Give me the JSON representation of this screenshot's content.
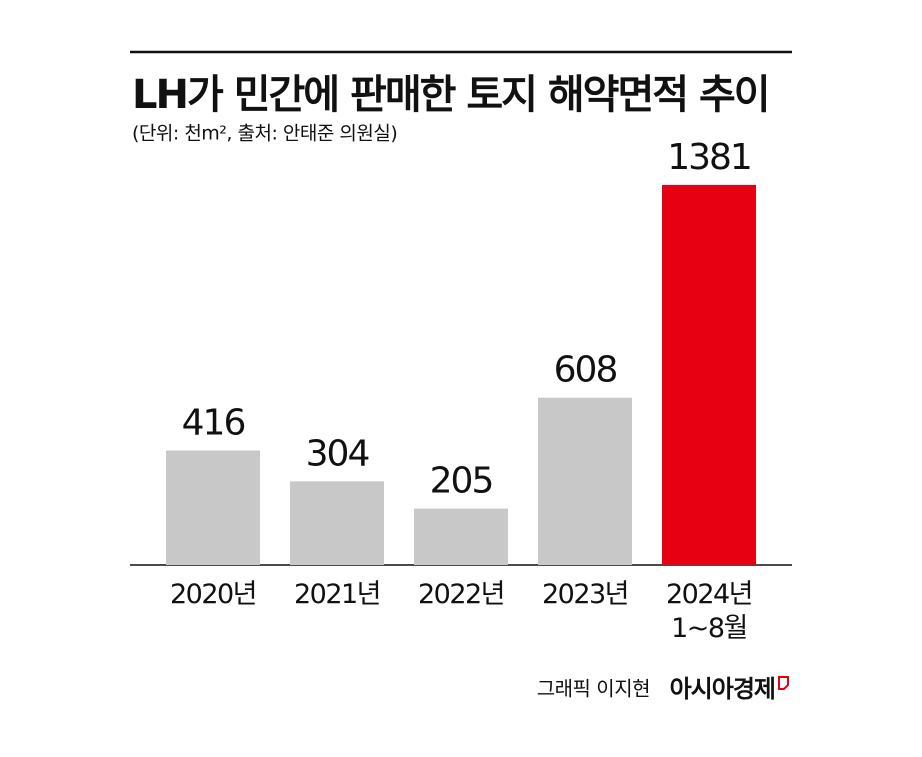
{
  "chart_data": {
    "type": "bar",
    "title": "LH가 민간에 판매한 토지 해약면적 추이",
    "subtitle": "(단위: 천m², 출처: 안태준 의원실)",
    "categories": [
      "2020년",
      "2021년",
      "2022년",
      "2023년",
      "2024년\n1~8월"
    ],
    "values": [
      416,
      304,
      205,
      608,
      1381
    ],
    "colors": [
      "#c8c8c9",
      "#c8c8c9",
      "#c8c8c9",
      "#c8c8c9",
      "#e60012"
    ],
    "credit": "그래픽 이지현",
    "publisher": "아시아경제"
  }
}
